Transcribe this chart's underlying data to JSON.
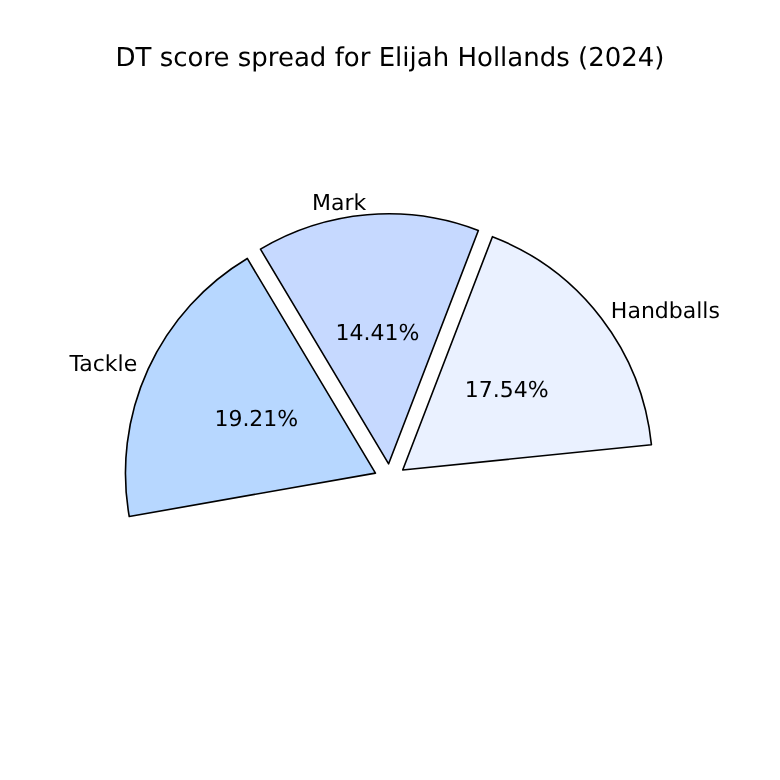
{
  "chart_data": {
    "type": "pie",
    "title": "DT score spread for Elijah Hollands (2024)",
    "categories": [
      "Tackle",
      "Mark",
      "Handballs"
    ],
    "values": [
      19.21,
      14.41,
      17.54
    ],
    "value_labels": [
      "19.21%",
      "14.41%",
      "17.54%"
    ],
    "colors": [
      "#b7d7ff",
      "#c6d9ff",
      "#eaf1ff"
    ]
  }
}
